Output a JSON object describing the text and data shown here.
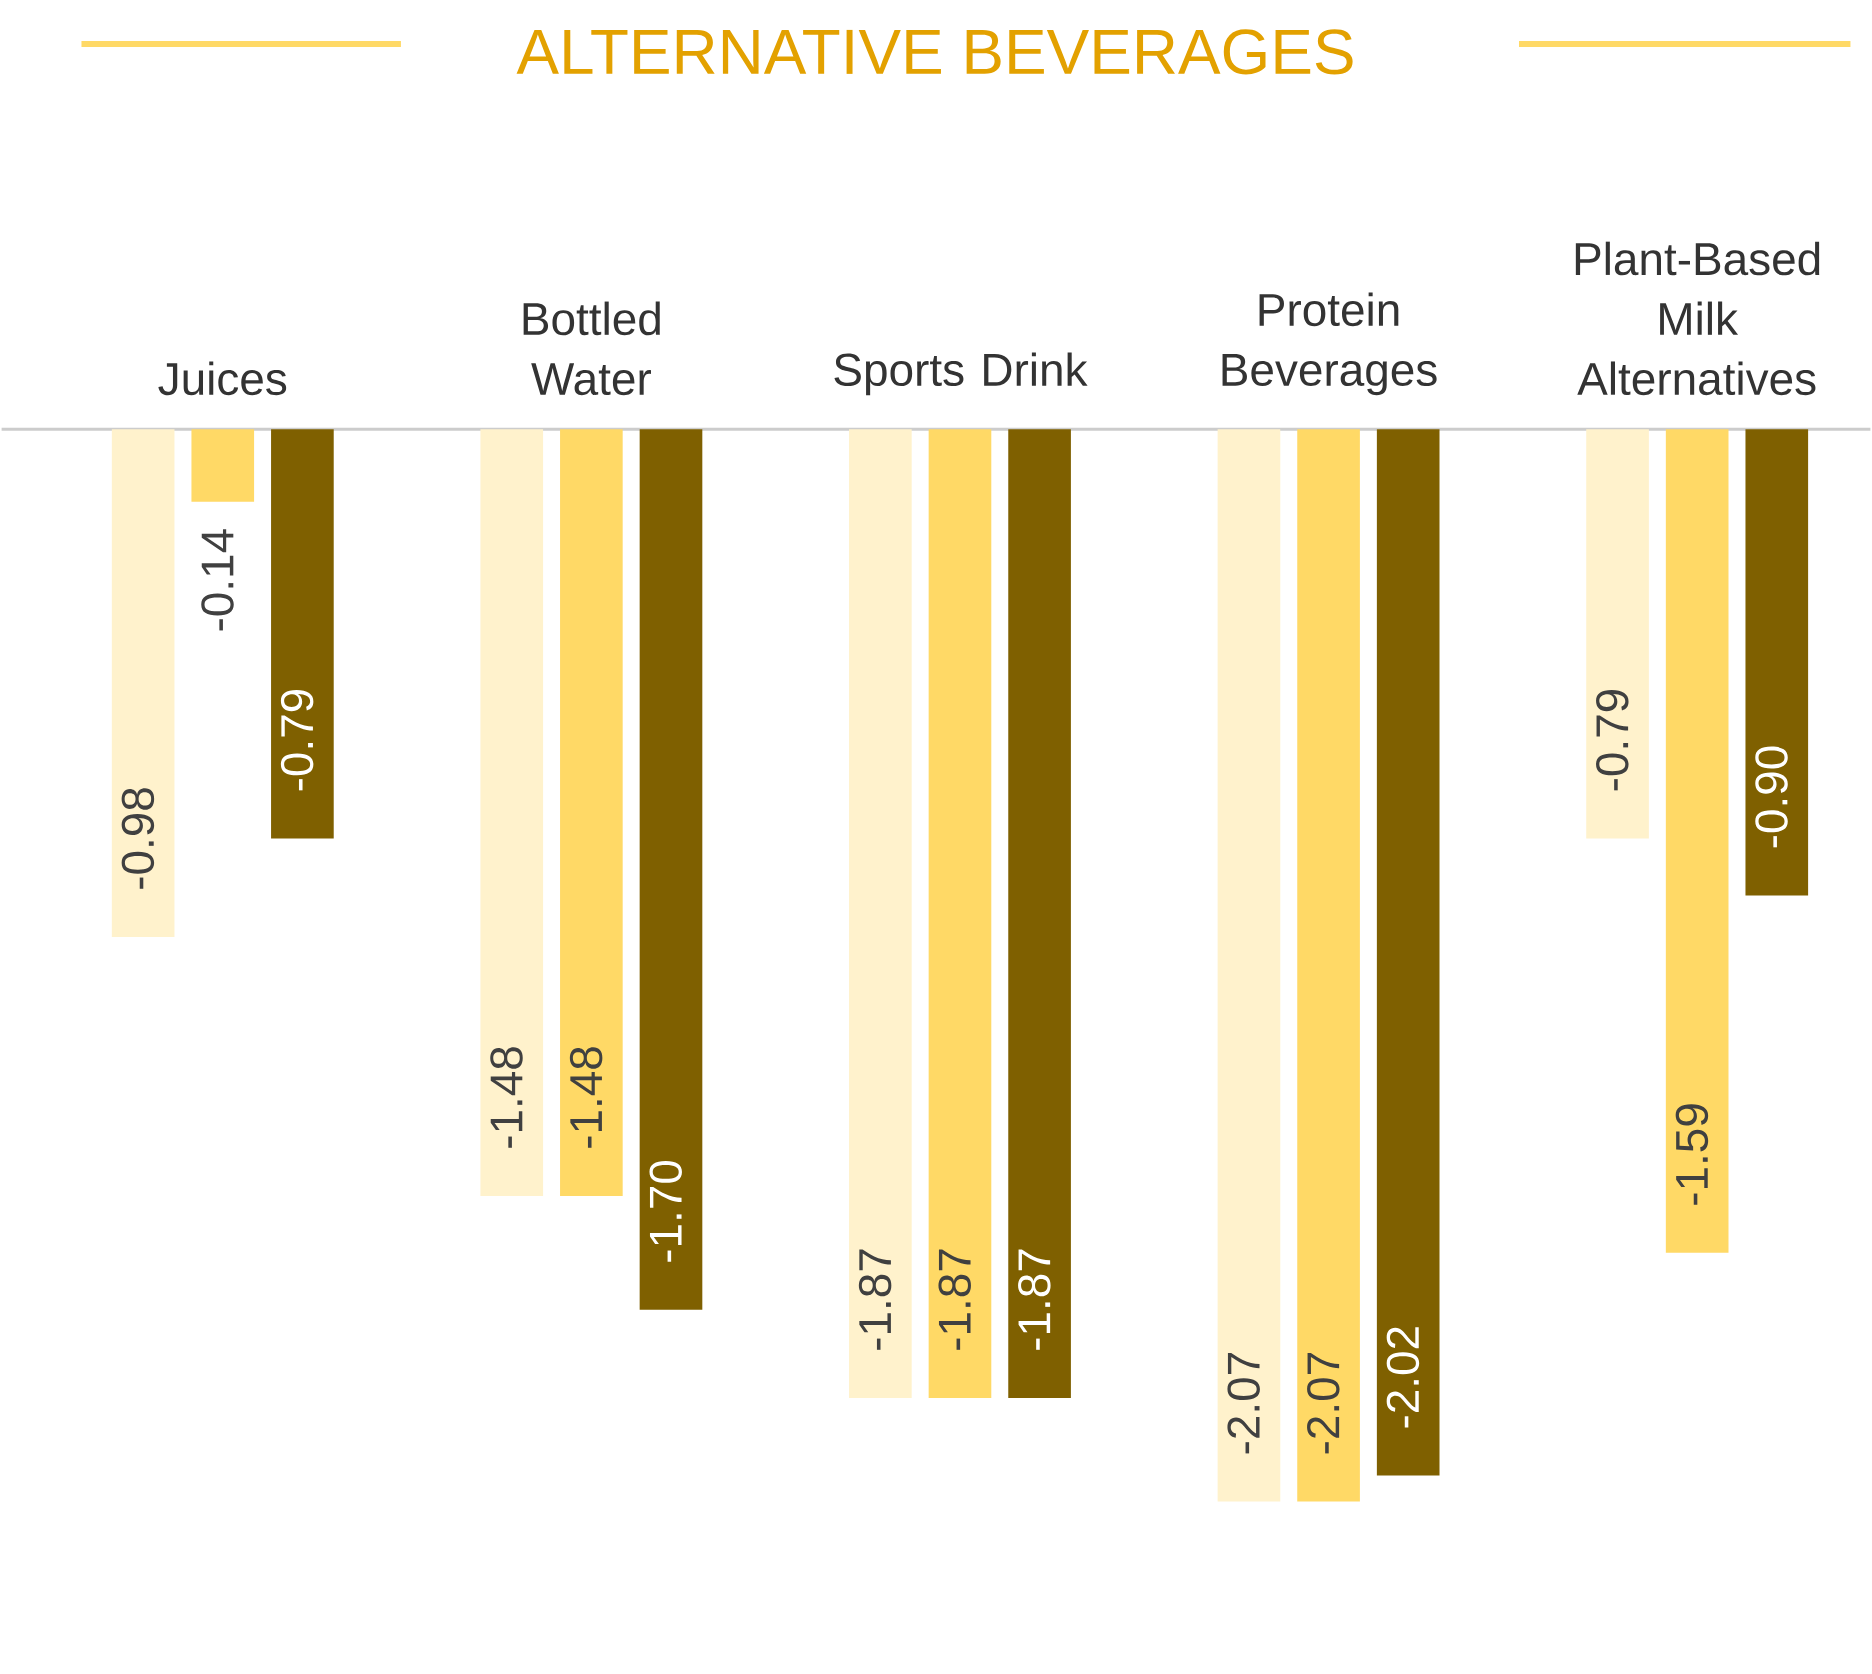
{
  "chart_data": {
    "type": "bar",
    "title": "ALTERNATIVE BEVERAGES",
    "categories": [
      "Juices",
      "Bottled Water",
      "Sports Drink",
      "Protein Beverages",
      "Plant-Based Milk Alternatives"
    ],
    "series": [
      {
        "color": "#fff2cc",
        "values": [
          -0.98,
          -1.48,
          -1.87,
          -2.07,
          -0.79
        ],
        "value_labels": [
          "-0.98",
          "-1.48",
          "-1.87",
          "-2.07",
          "-0.79"
        ]
      },
      {
        "color": "#ffd966",
        "values": [
          -0.14,
          -1.48,
          -1.87,
          -2.07,
          -1.59
        ],
        "value_labels": [
          "-0.14",
          "-1.48",
          "-1.87",
          "-2.07",
          "-1.59"
        ]
      },
      {
        "color": "#7f6000",
        "values": [
          -0.79,
          -1.7,
          -1.87,
          -2.02,
          -0.9
        ],
        "value_labels": [
          "-0.79",
          "-1.70",
          "-1.87",
          "-2.02",
          "-0.90"
        ]
      }
    ],
    "tick_labels": "x"
  }
}
